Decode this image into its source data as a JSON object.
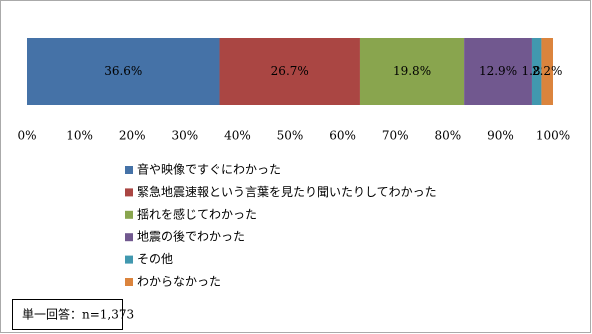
{
  "chart_data": {
    "type": "bar",
    "orientation": "horizontal",
    "stacked": true,
    "categories": [
      null
    ],
    "series": [
      {
        "name": "音や映像ですぐにわかった",
        "color": "#4572a7",
        "values": [
          36.6
        ],
        "value_labels": [
          "36.6%"
        ]
      },
      {
        "name": "緊急地震速報という言葉を見たり聞いたりしてわかった",
        "color": "#aa4643",
        "values": [
          26.7
        ],
        "value_labels": [
          "26.7%"
        ]
      },
      {
        "name": "揺れを感じてわかった",
        "color": "#89a54e",
        "values": [
          19.8
        ],
        "value_labels": [
          "19.8%"
        ]
      },
      {
        "name": "地震の後でわかった",
        "color": "#71588f",
        "values": [
          12.9
        ],
        "value_labels": [
          "12.9%"
        ]
      },
      {
        "name": "その他",
        "color": "#4198af",
        "values": [
          1.8
        ],
        "value_labels": [
          "1.8%"
        ]
      },
      {
        "name": "わからなかった",
        "color": "#db843d",
        "values": [
          2.2
        ],
        "value_labels": [
          "2.2%"
        ]
      }
    ],
    "xlim": [
      0,
      100
    ],
    "xticks": [
      {
        "value": 0,
        "label": "0%"
      },
      {
        "value": 10,
        "label": "10%"
      },
      {
        "value": 20,
        "label": "20%"
      },
      {
        "value": 30,
        "label": "30%"
      },
      {
        "value": 40,
        "label": "40%"
      },
      {
        "value": 50,
        "label": "50%"
      },
      {
        "value": 60,
        "label": "60%"
      },
      {
        "value": 70,
        "label": "70%"
      },
      {
        "value": 80,
        "label": "80%"
      },
      {
        "value": 90,
        "label": "90%"
      },
      {
        "value": 100,
        "label": "100%"
      }
    ],
    "note": "単一回答：n=1,373"
  }
}
